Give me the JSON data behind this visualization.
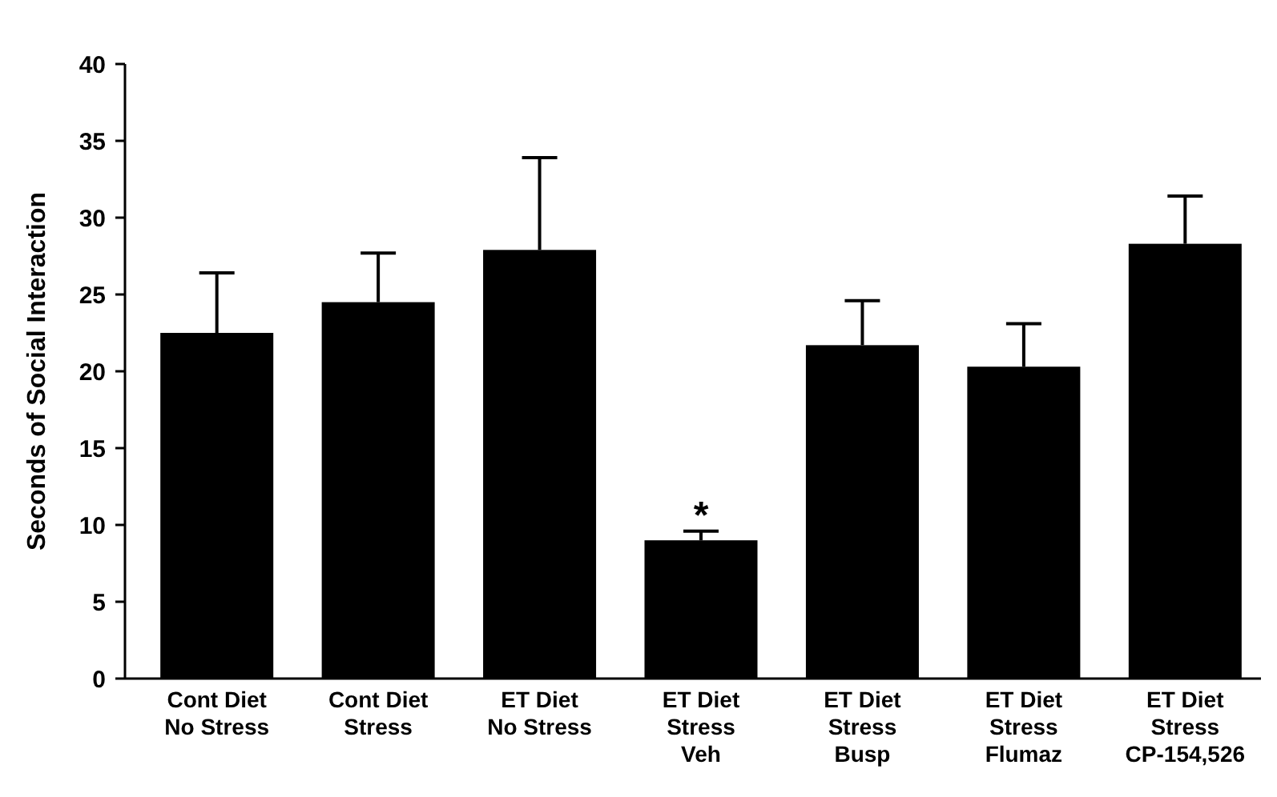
{
  "chart_data": {
    "type": "bar",
    "ylabel": "Seconds of Social Interaction",
    "categories": [
      "Cont Diet\nNo Stress",
      "Cont Diet\nStress",
      "ET Diet\nNo Stress",
      "ET Diet\nStress\nVeh",
      "ET Diet\nStress\nBusp",
      "ET Diet\nStress\nFlumaz",
      "ET Diet\nStress\nCP-154,526"
    ],
    "values": [
      22.5,
      24.5,
      27.9,
      9.0,
      21.7,
      20.3,
      28.3
    ],
    "errors": [
      [
        22.5,
        26.4
      ],
      [
        24.5,
        27.7
      ],
      [
        27.9,
        33.9
      ],
      [
        9.0,
        9.6
      ],
      [
        21.7,
        24.6
      ],
      [
        20.3,
        23.1
      ],
      [
        28.3,
        31.4
      ]
    ],
    "color": "#000000",
    "ylim": [
      0,
      40
    ],
    "yticks": [
      0,
      5,
      10,
      15,
      20,
      25,
      30,
      35,
      40
    ],
    "annotations": [
      {
        "text": "*",
        "x": "ET Diet\nStress\nVeh",
        "y": 9.6
      }
    ]
  }
}
